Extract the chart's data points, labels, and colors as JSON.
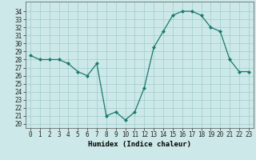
{
  "x": [
    0,
    1,
    2,
    3,
    4,
    5,
    6,
    7,
    8,
    9,
    10,
    11,
    12,
    13,
    14,
    15,
    16,
    17,
    18,
    19,
    20,
    21,
    22,
    23
  ],
  "y": [
    28.5,
    28.0,
    28.0,
    28.0,
    27.5,
    26.5,
    26.0,
    27.5,
    21.0,
    21.5,
    20.5,
    21.5,
    24.5,
    29.5,
    31.5,
    33.5,
    34.0,
    34.0,
    33.5,
    32.0,
    31.5,
    28.0,
    26.5,
    26.5
  ],
  "xlabel": "Humidex (Indice chaleur)",
  "xlim": [
    -0.5,
    23.5
  ],
  "ylim": [
    19.5,
    35.2
  ],
  "yticks": [
    20,
    21,
    22,
    23,
    24,
    25,
    26,
    27,
    28,
    29,
    30,
    31,
    32,
    33,
    34
  ],
  "xticks": [
    0,
    1,
    2,
    3,
    4,
    5,
    6,
    7,
    8,
    9,
    10,
    11,
    12,
    13,
    14,
    15,
    16,
    17,
    18,
    19,
    20,
    21,
    22,
    23
  ],
  "line_color": "#1a7a6e",
  "marker_color": "#1a7a6e",
  "bg_color": "#cde8e8",
  "grid_color": "#a0cccc",
  "tick_fontsize": 5.5,
  "xlabel_fontsize": 6.5,
  "marker_size": 2.0,
  "line_width": 0.9
}
